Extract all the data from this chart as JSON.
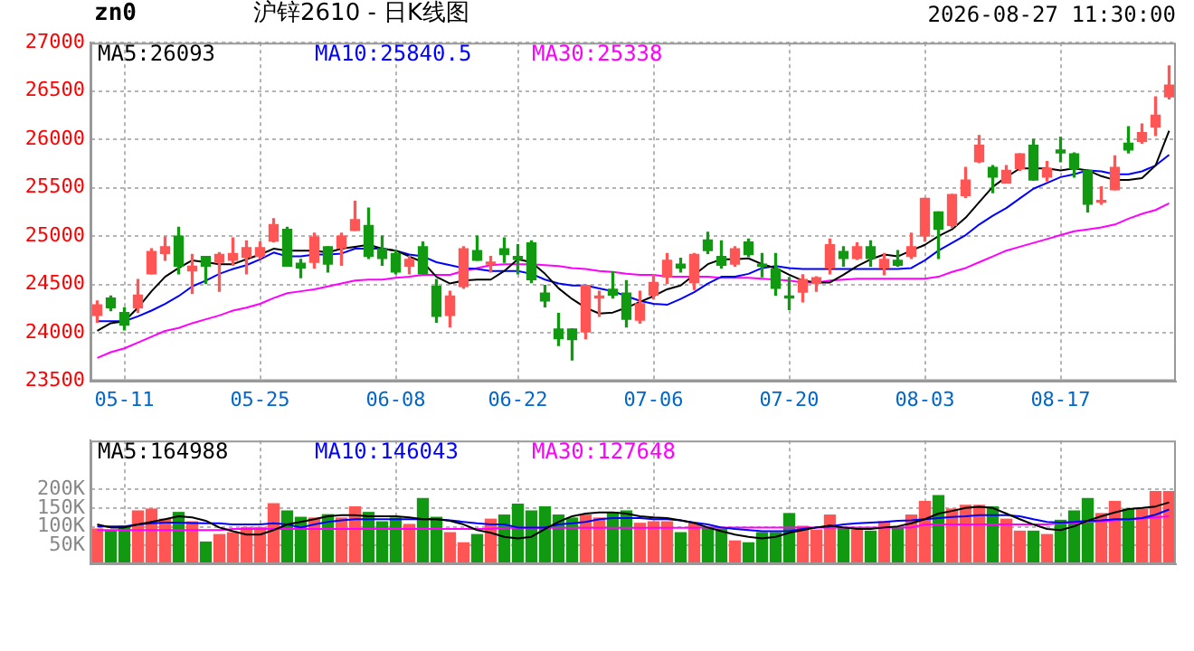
{
  "chart_data": [
    {
      "type": "candlestick",
      "title": "沪锌2610 - 日K线图",
      "annotations": [
        "zn0",
        "2026-08-27 11:30:00"
      ],
      "categories": [
        null,
        null,
        "05-11",
        null,
        null,
        null,
        null,
        null,
        null,
        null,
        null,
        null,
        "05-25",
        null,
        null,
        null,
        null,
        null,
        null,
        null,
        null,
        null,
        "06-08",
        null,
        null,
        null,
        null,
        null,
        null,
        null,
        null,
        "06-22",
        null,
        null,
        null,
        null,
        null,
        null,
        null,
        null,
        null,
        "07-06",
        null,
        null,
        null,
        null,
        null,
        null,
        null,
        null,
        null,
        "07-20",
        null,
        null,
        null,
        null,
        null,
        null,
        null,
        null,
        null,
        "08-03",
        null,
        null,
        null,
        null,
        null,
        null,
        null,
        null,
        null,
        "08-17",
        null,
        null,
        null,
        null,
        null,
        null,
        null,
        null
      ],
      "ohlc": [
        [
          24180,
          24330,
          24110,
          24290
        ],
        [
          24360,
          24380,
          24230,
          24260
        ],
        [
          24210,
          24260,
          24030,
          24080
        ],
        [
          24260,
          24550,
          24210,
          24390
        ],
        [
          24610,
          24870,
          24610,
          24840
        ],
        [
          24820,
          24990,
          24750,
          24890
        ],
        [
          25000,
          25090,
          24610,
          24690
        ],
        [
          24640,
          24810,
          24410,
          24690
        ],
        [
          24790,
          24790,
          24510,
          24690
        ],
        [
          24730,
          24830,
          24430,
          24810
        ],
        [
          24750,
          24980,
          24700,
          24820
        ],
        [
          24780,
          24950,
          24610,
          24880
        ],
        [
          24790,
          24940,
          24770,
          24880
        ],
        [
          24950,
          25180,
          24940,
          25120
        ],
        [
          25070,
          25090,
          24690,
          24690
        ],
        [
          24720,
          24760,
          24570,
          24670
        ],
        [
          24730,
          25030,
          24670,
          24990
        ],
        [
          24890,
          24890,
          24630,
          24710
        ],
        [
          24880,
          25030,
          24700,
          25000
        ],
        [
          25060,
          25360,
          25060,
          25170
        ],
        [
          25110,
          25290,
          24770,
          24790
        ],
        [
          24870,
          25000,
          24700,
          24770
        ],
        [
          24820,
          24850,
          24610,
          24630
        ],
        [
          24690,
          24790,
          24610,
          24760
        ],
        [
          24890,
          24940,
          24610,
          24610
        ],
        [
          24480,
          24550,
          24110,
          24170
        ],
        [
          24180,
          24430,
          24060,
          24380
        ],
        [
          24480,
          24890,
          24460,
          24870
        ],
        [
          24850,
          25000,
          24750,
          24750
        ],
        [
          24710,
          24790,
          24630,
          24730
        ],
        [
          24870,
          24980,
          24730,
          24810
        ],
        [
          24790,
          24910,
          24610,
          24760
        ],
        [
          24930,
          24950,
          24520,
          24550
        ],
        [
          24410,
          24490,
          24270,
          24330
        ],
        [
          24040,
          24200,
          23870,
          23940
        ],
        [
          24040,
          24040,
          23720,
          23930
        ],
        [
          24010,
          24490,
          23940,
          24490
        ],
        [
          24360,
          24430,
          24170,
          24380
        ],
        [
          24450,
          24630,
          24360,
          24390
        ],
        [
          24410,
          24540,
          24060,
          24140
        ],
        [
          24130,
          24430,
          24100,
          24300
        ],
        [
          24390,
          24600,
          24350,
          24520
        ],
        [
          24580,
          24820,
          24510,
          24750
        ],
        [
          24710,
          24770,
          24630,
          24670
        ],
        [
          24520,
          24820,
          24450,
          24810
        ],
        [
          24960,
          25040,
          24820,
          24850
        ],
        [
          24790,
          24950,
          24670,
          24700
        ],
        [
          24710,
          24890,
          24690,
          24870
        ],
        [
          24940,
          24970,
          24790,
          24810
        ],
        [
          24710,
          24820,
          24580,
          24690
        ],
        [
          24660,
          24820,
          24390,
          24460
        ],
        [
          24380,
          24570,
          24240,
          24360
        ],
        [
          24420,
          24600,
          24320,
          24550
        ],
        [
          24510,
          24580,
          24430,
          24570
        ],
        [
          24670,
          24970,
          24610,
          24910
        ],
        [
          24840,
          24890,
          24690,
          24770
        ],
        [
          24770,
          24930,
          24760,
          24890
        ],
        [
          24890,
          24950,
          24690,
          24770
        ],
        [
          24670,
          24820,
          24600,
          24760
        ],
        [
          24750,
          24850,
          24690,
          24700
        ],
        [
          24790,
          25030,
          24770,
          24890
        ],
        [
          25000,
          25390,
          24950,
          25390
        ],
        [
          25250,
          25250,
          24770,
          25070
        ],
        [
          25110,
          25430,
          25090,
          25430
        ],
        [
          25420,
          25710,
          25400,
          25580
        ],
        [
          25770,
          26040,
          25760,
          25940
        ],
        [
          25710,
          25730,
          25450,
          25610
        ],
        [
          25550,
          25730,
          25550,
          25680
        ],
        [
          25700,
          25850,
          25680,
          25850
        ],
        [
          25940,
          26000,
          25580,
          25580
        ],
        [
          25610,
          25770,
          25570,
          25700
        ],
        [
          25890,
          26020,
          25770,
          25860
        ],
        [
          25850,
          25860,
          25610,
          25700
        ],
        [
          25680,
          25680,
          25250,
          25330
        ],
        [
          25350,
          25510,
          25330,
          25370
        ],
        [
          25480,
          25830,
          25480,
          25710
        ],
        [
          25960,
          26130,
          25860,
          25890
        ],
        [
          25980,
          26160,
          25960,
          26070
        ],
        [
          26130,
          26440,
          26040,
          26250
        ],
        [
          26440,
          26760,
          26420,
          26560
        ]
      ],
      "colors": [
        "#ff5555",
        "#119911",
        "#119911",
        "#ff5555",
        "#ff5555",
        "#ff5555",
        "#119911",
        "#ff5555",
        "#119911",
        "#ff5555",
        "#ff5555",
        "#ff5555",
        "#ff5555",
        "#ff5555",
        "#119911",
        "#119911",
        "#ff5555",
        "#119911",
        "#ff5555",
        "#ff5555",
        "#119911",
        "#119911",
        "#119911",
        "#ff5555",
        "#119911",
        "#119911",
        "#ff5555",
        "#ff5555",
        "#119911",
        "#ff5555",
        "#119911",
        "#119911",
        "#119911",
        "#119911",
        "#119911",
        "#119911",
        "#ff5555",
        "#ff5555",
        "#119911",
        "#119911",
        "#ff5555",
        "#ff5555",
        "#ff5555",
        "#119911",
        "#ff5555",
        "#119911",
        "#119911",
        "#ff5555",
        "#119911",
        "#119911",
        "#119911",
        "#119911",
        "#ff5555",
        "#ff5555",
        "#ff5555",
        "#119911",
        "#ff5555",
        "#119911",
        "#ff5555",
        "#119911",
        "#ff5555",
        "#ff5555",
        "#119911",
        "#ff5555",
        "#ff5555",
        "#ff5555",
        "#119911",
        "#ff5555",
        "#ff5555",
        "#119911",
        "#ff5555",
        "#119911",
        "#119911",
        "#119911",
        "#ff5555",
        "#ff5555",
        "#119911",
        "#ff5555",
        "#ff5555",
        "#ff5555"
      ],
      "series": [
        {
          "name": "MA5:26093",
          "type": "line",
          "color": "#000000",
          "values": [
            24020,
            24100,
            24120,
            24260,
            24430,
            24580,
            24670,
            24750,
            24730,
            24710,
            24710,
            24760,
            24810,
            24870,
            24850,
            24850,
            24850,
            24830,
            24870,
            24890,
            24910,
            24870,
            24850,
            24790,
            24730,
            24580,
            24510,
            24540,
            24550,
            24550,
            24640,
            24760,
            24730,
            24610,
            24460,
            24350,
            24260,
            24200,
            24210,
            24260,
            24320,
            24380,
            24450,
            24490,
            24600,
            24710,
            24760,
            24760,
            24770,
            24710,
            24670,
            24600,
            24540,
            24520,
            24520,
            24600,
            24690,
            24760,
            24810,
            24790,
            24850,
            24910,
            25000,
            25070,
            25190,
            25350,
            25510,
            25610,
            25700,
            25700,
            25700,
            25680,
            25700,
            25680,
            25620,
            25580,
            25580,
            25600,
            25730,
            26090
          ]
        },
        {
          "name": "MA10:25840.5",
          "type": "line",
          "color": "#0000ff",
          "values": [
            24120,
            24120,
            24120,
            24170,
            24230,
            24300,
            24380,
            24480,
            24540,
            24610,
            24660,
            24700,
            24760,
            24830,
            24790,
            24790,
            24810,
            24810,
            24820,
            24870,
            24870,
            24870,
            24850,
            24810,
            24790,
            24730,
            24700,
            24670,
            24660,
            24640,
            24640,
            24640,
            24610,
            24550,
            24510,
            24490,
            24490,
            24460,
            24430,
            24380,
            24330,
            24300,
            24290,
            24350,
            24420,
            24510,
            24580,
            24580,
            24610,
            24670,
            24690,
            24670,
            24660,
            24660,
            24660,
            24660,
            24660,
            24660,
            24660,
            24660,
            24670,
            24750,
            24850,
            24930,
            25010,
            25120,
            25210,
            25290,
            25390,
            25490,
            25550,
            25610,
            25640,
            25680,
            25670,
            25640,
            25640,
            25670,
            25730,
            25840
          ]
        },
        {
          "name": "MA30:25338",
          "type": "line",
          "color": "#ff00ff",
          "values": [
            23740,
            23800,
            23840,
            23900,
            23960,
            24020,
            24050,
            24100,
            24140,
            24180,
            24230,
            24260,
            24300,
            24360,
            24410,
            24430,
            24450,
            24480,
            24510,
            24540,
            24550,
            24550,
            24570,
            24580,
            24600,
            24600,
            24600,
            24640,
            24670,
            24700,
            24710,
            24710,
            24710,
            24700,
            24690,
            24670,
            24660,
            24640,
            24630,
            24610,
            24600,
            24600,
            24580,
            24580,
            24580,
            24580,
            24570,
            24570,
            24570,
            24560,
            24550,
            24540,
            24520,
            24520,
            24540,
            24550,
            24560,
            24560,
            24560,
            24560,
            24560,
            24560,
            24580,
            24630,
            24670,
            24730,
            24790,
            24850,
            24890,
            24930,
            24970,
            25010,
            25050,
            25070,
            25090,
            25120,
            25180,
            25230,
            25270,
            25340
          ]
        }
      ],
      "ylim": [
        23500,
        27000
      ],
      "yticks": [
        23500,
        24000,
        24500,
        25000,
        25500,
        26000,
        26500,
        27000
      ],
      "grid": true,
      "legend": "top"
    },
    {
      "type": "bar",
      "tick_labels": "y",
      "categories": [
        null,
        null,
        null,
        null,
        null,
        null,
        null,
        null,
        null,
        null,
        null,
        null,
        null,
        null,
        null,
        null,
        null,
        null,
        null,
        null,
        null,
        null,
        null,
        null,
        null,
        null,
        null,
        null,
        null,
        null,
        null,
        null,
        null,
        null,
        null,
        null,
        null,
        null,
        null,
        null,
        null,
        null,
        null,
        null,
        null,
        null,
        null,
        null,
        null,
        null,
        null,
        null,
        null,
        null,
        null,
        null,
        null,
        null,
        null,
        null,
        null,
        null,
        null,
        null,
        null,
        null,
        null,
        null,
        null,
        null,
        null,
        null,
        null,
        null,
        null,
        null,
        null,
        null,
        null,
        null
      ],
      "series": [
        {
          "type": "bar",
          "values": [
            94000,
            88000,
            101000,
            142000,
            147000,
            120000,
            138000,
            113000,
            59000,
            79000,
            84000,
            98000,
            98000,
            161000,
            142000,
            125000,
            123000,
            132000,
            123000,
            153000,
            138000,
            113000,
            123000,
            106000,
            175000,
            125000,
            84000,
            57000,
            79000,
            120000,
            131000,
            160000,
            142000,
            153000,
            131000,
            123000,
            131000,
            123000,
            138000,
            142000,
            109000,
            113000,
            113000,
            84000,
            109000,
            98000,
            94000,
            62000,
            57000,
            84000,
            84000,
            135000,
            101000,
            91000,
            131000,
            98000,
            91000,
            88000,
            113000,
            98000,
            131000,
            167000,
            183000,
            147000,
            157000,
            157000,
            153000,
            120000,
            88000,
            88000,
            79000,
            117000,
            142000,
            175000,
            135000,
            167000,
            147000,
            147000,
            194000,
            194000
          ],
          "colors": [
            "#ff5555",
            "#119911",
            "#119911",
            "#ff5555",
            "#ff5555",
            "#ff5555",
            "#119911",
            "#ff5555",
            "#119911",
            "#ff5555",
            "#ff5555",
            "#ff5555",
            "#ff5555",
            "#ff5555",
            "#119911",
            "#119911",
            "#ff5555",
            "#119911",
            "#ff5555",
            "#ff5555",
            "#119911",
            "#119911",
            "#119911",
            "#ff5555",
            "#119911",
            "#119911",
            "#ff5555",
            "#ff5555",
            "#119911",
            "#ff5555",
            "#119911",
            "#119911",
            "#119911",
            "#119911",
            "#119911",
            "#119911",
            "#ff5555",
            "#ff5555",
            "#119911",
            "#119911",
            "#ff5555",
            "#ff5555",
            "#ff5555",
            "#119911",
            "#ff5555",
            "#119911",
            "#119911",
            "#ff5555",
            "#119911",
            "#119911",
            "#119911",
            "#119911",
            "#ff5555",
            "#ff5555",
            "#ff5555",
            "#119911",
            "#ff5555",
            "#119911",
            "#ff5555",
            "#119911",
            "#ff5555",
            "#ff5555",
            "#119911",
            "#ff5555",
            "#ff5555",
            "#ff5555",
            "#119911",
            "#ff5555",
            "#ff5555",
            "#119911",
            "#ff5555",
            "#119911",
            "#119911",
            "#119911",
            "#ff5555",
            "#ff5555",
            "#119911",
            "#ff5555",
            "#ff5555",
            "#ff5555"
          ]
        },
        {
          "name": "MA5:164988",
          "type": "line",
          "color": "#000000",
          "values": [
            106000,
            98000,
            98000,
            106000,
            113000,
            120000,
            128000,
            125000,
            116000,
            98000,
            88000,
            79000,
            79000,
            91000,
            106000,
            113000,
            120000,
            128000,
            131000,
            131000,
            128000,
            128000,
            128000,
            125000,
            120000,
            120000,
            116000,
            106000,
            91000,
            84000,
            73000,
            69000,
            73000,
            94000,
            113000,
            128000,
            135000,
            138000,
            138000,
            135000,
            128000,
            125000,
            123000,
            117000,
            110000,
            98000,
            88000,
            79000,
            73000,
            69000,
            73000,
            84000,
            91000,
            98000,
            103000,
            98000,
            94000,
            94000,
            98000,
            101000,
            109000,
            120000,
            135000,
            142000,
            150000,
            153000,
            150000,
            135000,
            120000,
            106000,
            94000,
            91000,
            101000,
            116000,
            128000,
            138000,
            147000,
            150000,
            154000,
            165000
          ]
        },
        {
          "name": "MA10:146043",
          "type": "line",
          "color": "#0000ff",
          "values": [
            101000,
            101000,
            101000,
            106000,
            109000,
            111000,
            111000,
            110000,
            109000,
            109000,
            106000,
            106000,
            106000,
            109000,
            106000,
            98000,
            106000,
            113000,
            117000,
            120000,
            120000,
            120000,
            120000,
            120000,
            120000,
            120000,
            117000,
            113000,
            109000,
            106000,
            106000,
            98000,
            98000,
            98000,
            106000,
            109000,
            113000,
            120000,
            123000,
            123000,
            123000,
            120000,
            120000,
            117000,
            111000,
            106000,
            98000,
            94000,
            91000,
            88000,
            88000,
            88000,
            94000,
            98000,
            101000,
            106000,
            109000,
            111000,
            113000,
            116000,
            117000,
            120000,
            123000,
            126000,
            128000,
            131000,
            131000,
            131000,
            128000,
            120000,
            113000,
            111000,
            113000,
            116000,
            117000,
            120000,
            120000,
            123000,
            132000,
            146000
          ]
        },
        {
          "name": "MA30:127648",
          "type": "line",
          "color": "#ff00ff",
          "values": [
            91000,
            91000,
            91000,
            91000,
            91000,
            91000,
            91000,
            91000,
            91000,
            91000,
            94000,
            94000,
            94000,
            94000,
            94000,
            94000,
            94000,
            94000,
            94000,
            94000,
            94000,
            94000,
            94000,
            94000,
            94000,
            94000,
            94000,
            94000,
            94000,
            94000,
            97000,
            97000,
            97000,
            97000,
            97000,
            97000,
            97000,
            97000,
            97000,
            97000,
            97000,
            97000,
            97000,
            97000,
            97000,
            98000,
            98000,
            98000,
            98000,
            98000,
            98000,
            98000,
            98000,
            98000,
            98000,
            98000,
            98000,
            98000,
            98000,
            98000,
            98000,
            106000,
            106000,
            106000,
            106000,
            106000,
            106000,
            106000,
            106000,
            106000,
            106000,
            109000,
            111000,
            113000,
            114000,
            117000,
            120000,
            122000,
            125000,
            128000
          ]
        }
      ],
      "ylim": [
        0,
        330000
      ],
      "yticks": [
        {
          "value": 50000,
          "label": "50K"
        },
        {
          "value": 100000,
          "label": "100K"
        },
        {
          "value": 150000,
          "label": "150K"
        },
        {
          "value": 200000,
          "label": "200K"
        }
      ],
      "grid": true,
      "legend": "top"
    }
  ]
}
